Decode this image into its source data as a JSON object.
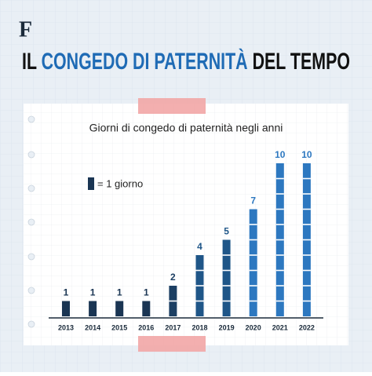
{
  "header": {
    "logo": "F",
    "title_start": "IL",
    "title_highlight": "CONGEDO DI PATERNITÀ",
    "title_end": "DEL TEMPO"
  },
  "chart_data": {
    "type": "bar",
    "title": "Giorni di congedo di paternità negli anni",
    "legend_label": "= 1 giorno",
    "categories": [
      "2013",
      "2014",
      "2015",
      "2016",
      "2017",
      "2018",
      "2019",
      "2020",
      "2021",
      "2022"
    ],
    "values": [
      1,
      1,
      1,
      1,
      2,
      4,
      5,
      7,
      10,
      10
    ],
    "colors": [
      "#1a3553",
      "#1a3553",
      "#1a3553",
      "#1a3553",
      "#1c3f63",
      "#1f5688",
      "#1f5688",
      "#2d78c0",
      "#2d78c0",
      "#2d78c0"
    ]
  }
}
